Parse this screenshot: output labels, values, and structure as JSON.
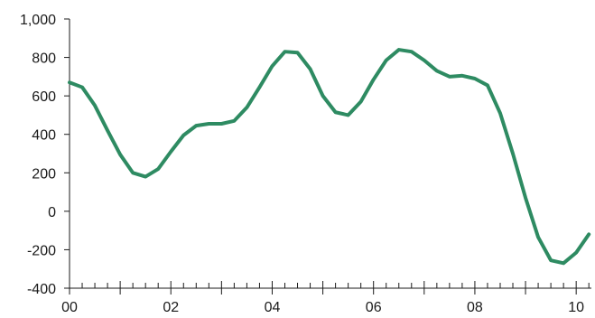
{
  "chart_data": {
    "type": "line",
    "title": "",
    "xlabel": "",
    "ylabel": "",
    "x_ticks": [
      "00",
      "02",
      "04",
      "06",
      "08",
      "10"
    ],
    "y_ticks": [
      "1,000",
      "800",
      "600",
      "400",
      "200",
      "0",
      "-200",
      "-400"
    ],
    "ylim": [
      -400,
      1000
    ],
    "xlim": [
      0,
      10.3
    ],
    "grid": false,
    "colors": {
      "line": "#2e8b62",
      "axis": "#1a1a1a"
    },
    "series": [
      {
        "name": "",
        "x": [
          0.0,
          0.25,
          0.5,
          0.75,
          1.0,
          1.25,
          1.5,
          1.75,
          2.0,
          2.25,
          2.5,
          2.75,
          3.0,
          3.25,
          3.5,
          3.75,
          4.0,
          4.25,
          4.5,
          4.75,
          5.0,
          5.25,
          5.5,
          5.75,
          6.0,
          6.25,
          6.5,
          6.75,
          7.0,
          7.25,
          7.5,
          7.75,
          8.0,
          8.25,
          8.5,
          8.75,
          9.0,
          9.25,
          9.5,
          9.75,
          10.0,
          10.25
        ],
        "y": [
          670,
          645,
          550,
          420,
          295,
          200,
          180,
          220,
          310,
          395,
          445,
          455,
          455,
          470,
          540,
          645,
          755,
          830,
          825,
          740,
          600,
          515,
          500,
          570,
          685,
          785,
          840,
          830,
          785,
          730,
          700,
          705,
          690,
          655,
          510,
          300,
          70,
          -135,
          -255,
          -270,
          -215,
          -120
        ]
      }
    ]
  }
}
